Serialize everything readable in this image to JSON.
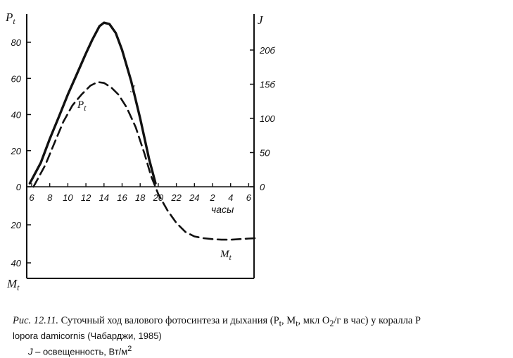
{
  "chart_data": {
    "type": "line",
    "left_axis_top_label": "Pt",
    "left_axis_bottom_label": "Mt",
    "right_axis_label": "J",
    "x_axis_label": "часы",
    "x_tick_labels": [
      "6",
      "8",
      "10",
      "12",
      "14",
      "16",
      "18",
      "20",
      "22",
      "24",
      "2",
      "4",
      "6"
    ],
    "x_hours": [
      6,
      8,
      10,
      12,
      14,
      16,
      18,
      20,
      22,
      24,
      26,
      28,
      30
    ],
    "xlim": [
      5.5,
      31
    ],
    "left_y_ticks_up": [
      0,
      20,
      40,
      60,
      80
    ],
    "left_y_ticks_down": [
      20,
      40
    ],
    "left_ylim": [
      -42,
      92
    ],
    "right_y_ticks": [
      0,
      50,
      100,
      150,
      200
    ],
    "right_y_tick_labels": [
      "0",
      "50",
      "100",
      "15б",
      "20б"
    ],
    "series": [
      {
        "name": "J",
        "style": "solid",
        "axis": "right",
        "x": [
          5.8,
          7,
          8,
          9,
          10,
          11,
          12,
          12.7,
          13.5,
          14,
          14.6,
          15.3,
          16,
          17,
          18,
          19,
          19.7
        ],
        "y": [
          5,
          35,
          70,
          102,
          135,
          165,
          195,
          215,
          235,
          240,
          238,
          225,
          200,
          155,
          100,
          40,
          5
        ]
      },
      {
        "name": "Pt",
        "style": "dashed",
        "axis": "left",
        "x": [
          6.2,
          7.5,
          8.5,
          9.5,
          10.5,
          11.5,
          12.5,
          13.3,
          14,
          14.8,
          15.6,
          16.5,
          17.5,
          18.5,
          19.2,
          20,
          21,
          22,
          23,
          24,
          25,
          26,
          27,
          28,
          29,
          30,
          30.8
        ],
        "y": [
          0,
          12,
          24,
          36,
          45,
          51,
          56,
          58,
          57.5,
          55,
          51,
          44,
          33,
          18,
          6,
          -4,
          -13,
          -20,
          -25,
          -27.5,
          -28.5,
          -29,
          -29.3,
          -29.3,
          -29,
          -28.7,
          -28.5
        ]
      }
    ],
    "series_labels": [
      "J",
      "Pt",
      "Mt"
    ]
  },
  "caption": {
    "line1_prefix": "Рис. 12.11.",
    "line1_text": " Суточный ход валового фотосинтеза и дыхания  (P",
    "line1_sub_t": "t",
    "line1_mid": ", M",
    "line1_sub_t2": "t",
    "line1_units": ", мкл O",
    "line1_sub_2": "2",
    "line1_end": "/г в час)  у коралла P",
    "line2": "lopora damicornis (Чабарджи, 1985)",
    "line3_symbol": "J",
    "line3_text": " –  освещенность, Вт/м",
    "line3_sup": "2"
  }
}
